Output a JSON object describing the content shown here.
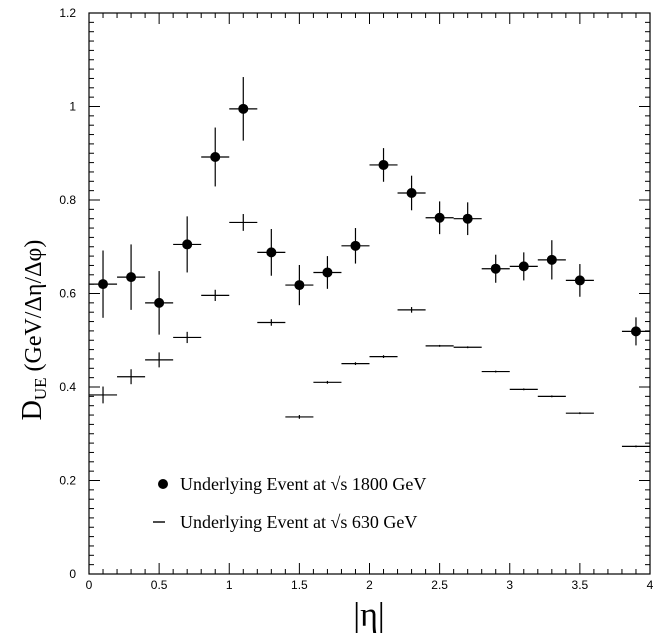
{
  "chart_data": {
    "type": "scatter",
    "title": "",
    "xlabel": "|η|",
    "ylabel_main": "D",
    "ylabel_sub": "UE",
    "ylabel_rest": " (GeV/Δη/Δφ)",
    "xlim": [
      0,
      4
    ],
    "ylim": [
      0,
      1.2
    ],
    "x_ticks": [
      "0",
      "0.5",
      "1",
      "1.5",
      "2",
      "2.5",
      "3",
      "3.5",
      "4"
    ],
    "y_ticks": [
      "0",
      "0.2",
      "0.4",
      "0.6",
      "0.8",
      "1",
      "1.2"
    ],
    "grid": false,
    "legend_position": "bottom-left",
    "series": [
      {
        "name": "Underlying Event at √s 1800 GeV",
        "marker": "filled-circle",
        "x": [
          0.1,
          0.3,
          0.5,
          0.7,
          0.9,
          1.1,
          1.3,
          1.5,
          1.7,
          1.9,
          2.1,
          2.3,
          2.5,
          2.7,
          2.9,
          3.1,
          3.3,
          3.5,
          3.9
        ],
        "xerr": 0.1,
        "y": [
          0.62,
          0.635,
          0.58,
          0.705,
          0.892,
          0.995,
          0.688,
          0.618,
          0.645,
          0.702,
          0.875,
          0.815,
          0.762,
          0.76,
          0.653,
          0.658,
          0.672,
          0.628,
          0.519
        ],
        "yerr": [
          0.072,
          0.07,
          0.068,
          0.06,
          0.063,
          0.068,
          0.05,
          0.043,
          0.035,
          0.038,
          0.036,
          0.037,
          0.035,
          0.035,
          0.03,
          0.03,
          0.042,
          0.035,
          0.03
        ]
      },
      {
        "name": "Underlying Event at √s 630 GeV",
        "marker": "dash",
        "x": [
          0.1,
          0.3,
          0.5,
          0.7,
          0.9,
          1.1,
          1.3,
          1.5,
          1.7,
          1.9,
          2.1,
          2.3,
          2.5,
          2.7,
          2.9,
          3.1,
          3.3,
          3.5,
          3.9
        ],
        "xerr": 0.1,
        "y": [
          0.383,
          0.422,
          0.458,
          0.506,
          0.596,
          0.752,
          0.538,
          0.336,
          0.41,
          0.45,
          0.465,
          0.565,
          0.488,
          0.485,
          0.433,
          0.395,
          0.38,
          0.344,
          0.273
        ],
        "yerr": [
          0.018,
          0.016,
          0.016,
          0.012,
          0.012,
          0.018,
          0.007,
          0.004,
          0.003,
          0.003,
          0.003,
          0.006,
          0.002,
          0.002,
          0.002,
          0.002,
          0.002,
          0.002,
          0.002
        ]
      }
    ]
  }
}
